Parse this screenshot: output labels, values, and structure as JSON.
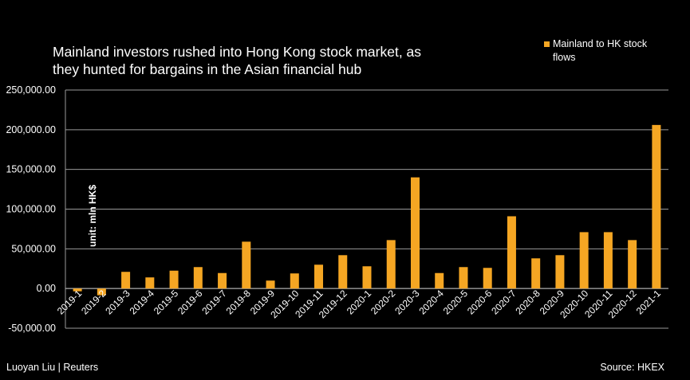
{
  "title_lines": [
    "Mainland  investors rushed into Hong Kong stock market, as",
    "they hunted for bargains in the Asian financial hub"
  ],
  "unit_label": "unit: mln HK$",
  "footer": {
    "credit": "Luoyan Liu | Reuters",
    "source": "Source:  HKEX"
  },
  "colors": {
    "background": "#000000",
    "bar": "#F5A623",
    "grid": "#9a9a9a",
    "text": "#ffffff"
  },
  "chart_data": {
    "type": "bar",
    "title": "Mainland  investors rushed into Hong Kong stock market, as they hunted for bargains in the Asian financial hub",
    "xlabel": "",
    "ylabel": "unit: mln HK$",
    "ylim": [
      -50000,
      250000
    ],
    "yticks": [
      -50000,
      0,
      50000,
      100000,
      150000,
      200000,
      250000
    ],
    "ytick_labels": [
      "-50,000.00",
      "0.00",
      "50,000.00",
      "100,000.00",
      "150,000.00",
      "200,000.00",
      "250,000.00"
    ],
    "grid": true,
    "legend_position": "top-right",
    "categories": [
      "2019-1",
      "2019-2",
      "2019-3",
      "2019-4",
      "2019-5",
      "2019-6",
      "2019-7",
      "2019-8",
      "2019-9",
      "2019-10",
      "2019-11",
      "2019-12",
      "2020-1",
      "2020-2",
      "2020-3",
      "2020-4",
      "2020-5",
      "2020-6",
      "2020-7",
      "2020-8",
      "2020-9",
      "2020-10",
      "2020-11",
      "2020-12",
      "2021-1"
    ],
    "series": [
      {
        "name": "Mainland to HK stock flows",
        "color": "#F5A623",
        "values": [
          -3500,
          -8500,
          21000,
          14000,
          22500,
          27000,
          19500,
          59000,
          10000,
          19000,
          30000,
          42000,
          28000,
          61000,
          140000,
          19500,
          27000,
          26000,
          91000,
          38000,
          42000,
          71000,
          71000,
          61000,
          206000
        ]
      }
    ]
  }
}
